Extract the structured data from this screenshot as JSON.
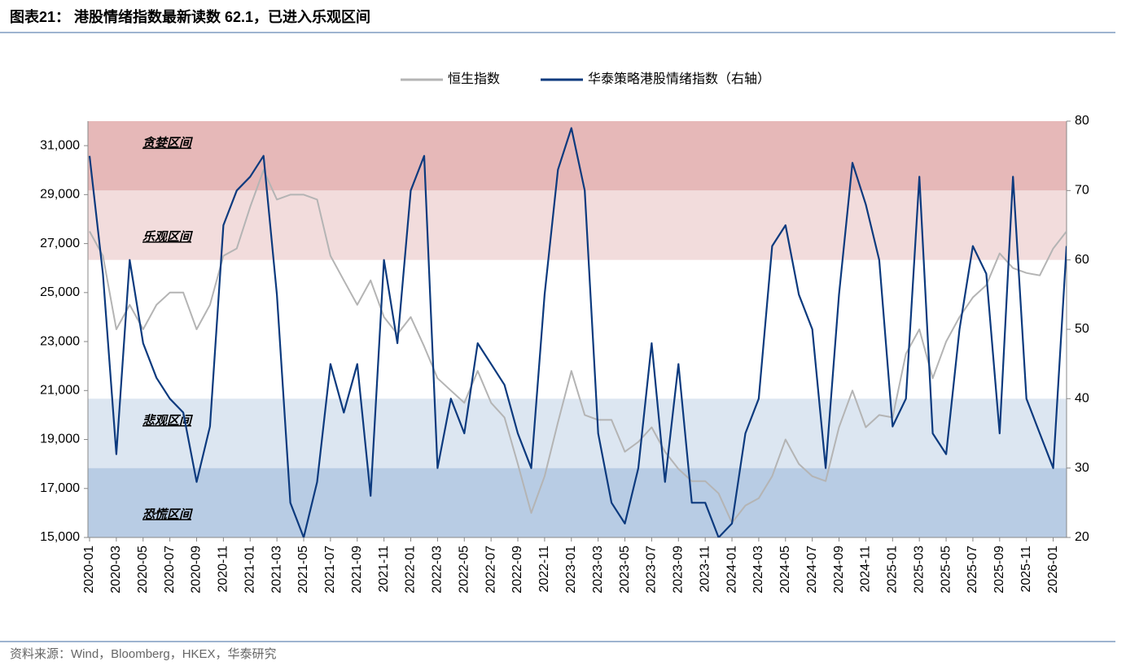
{
  "chart_data": {
    "type": "line",
    "title": "图表21： 港股情绪指数最新读数 62.1，已进入乐观区间",
    "source": "资料来源：Wind，Bloomberg，HKEX，华泰研究",
    "categories": [
      "2020-01",
      null,
      "2020-03",
      null,
      "2020-05",
      null,
      "2020-07",
      null,
      "2020-09",
      null,
      "2020-11",
      null,
      "2021-01",
      null,
      "2021-03",
      null,
      "2021-05",
      null,
      "2021-07",
      null,
      "2021-09",
      null,
      "2021-11",
      null,
      "2022-01",
      null,
      "2022-03",
      null,
      "2022-05",
      null,
      "2022-07",
      null,
      "2022-09",
      null,
      "2022-11",
      null,
      "2023-01",
      null,
      "2023-03",
      null,
      "2023-05",
      null,
      "2023-07",
      null,
      "2023-09",
      null,
      "2023-11",
      null,
      "2024-01",
      null,
      "2024-03",
      null,
      "2024-05",
      null,
      "2024-07",
      null,
      "2024-09",
      null,
      "2024-11",
      null,
      "2025-01",
      null,
      "2025-03",
      null,
      "2025-05",
      null,
      "2025-07",
      null,
      "2025-09",
      null,
      "2025-11",
      null,
      "2026-01",
      null
    ],
    "series": [
      {
        "name": "恒生指数",
        "color": "#b4b4b4",
        "axis": "y",
        "values": [
          27500,
          26500,
          23500,
          24500,
          23500,
          24500,
          25000,
          25000,
          23500,
          24500,
          26500,
          26800,
          28500,
          30000,
          28800,
          29000,
          29000,
          28800,
          26500,
          25500,
          24500,
          25500,
          24000,
          23300,
          24000,
          22800,
          21500,
          21000,
          20500,
          21800,
          20500,
          19900,
          18000,
          16000,
          17500,
          19700,
          21800,
          20000,
          19800,
          19800,
          18500,
          18900,
          19500,
          18500,
          17800,
          17300,
          17300,
          16800,
          15600,
          16300,
          16600,
          17500,
          19000,
          18000,
          17500,
          17300,
          19500,
          21000,
          19500,
          20000,
          19900,
          22500,
          23500,
          21500,
          23000,
          24000,
          24800,
          25300,
          26600,
          26000,
          25800,
          25700,
          26800,
          27500
        ]
      },
      {
        "name": "华泰策略港股情绪指数（右轴）",
        "color": "#0c3a7e",
        "axis": "y2",
        "values": [
          75,
          58,
          32,
          60,
          48,
          43,
          40,
          38,
          28,
          36,
          65,
          70,
          72,
          75,
          55,
          25,
          20,
          28,
          45,
          38,
          45,
          26,
          60,
          48,
          70,
          75,
          30,
          40,
          35,
          48,
          45,
          42,
          35,
          30,
          55,
          73,
          79,
          70,
          35,
          25,
          22,
          30,
          48,
          28,
          45,
          25,
          25,
          20,
          22,
          35,
          40,
          62,
          65,
          55,
          50,
          30,
          55,
          74,
          68,
          60,
          36,
          40,
          72,
          35,
          32,
          50,
          62,
          58,
          35,
          72,
          40,
          35,
          30,
          62
        ]
      }
    ],
    "zones": [
      {
        "name": "贪婪区间",
        "range": [
          70,
          80
        ],
        "color": "#e6b8b8"
      },
      {
        "name": "乐观区间",
        "range": [
          60,
          70
        ],
        "color": "#f2dcdc"
      },
      {
        "name": "悲观区间",
        "range": [
          30,
          40
        ],
        "color": "#dce6f1"
      },
      {
        "name": "恐慌区间",
        "range": [
          20,
          30
        ],
        "color": "#b8cce4"
      }
    ],
    "ylim": [
      15000,
      32000
    ],
    "yticks": [
      {
        "value": 15000,
        "label": "15,000"
      },
      {
        "value": 17000,
        "label": "17,000"
      },
      {
        "value": 19000,
        "label": "19,000"
      },
      {
        "value": 21000,
        "label": "21,000"
      },
      {
        "value": 23000,
        "label": "23,000"
      },
      {
        "value": 25000,
        "label": "25,000"
      },
      {
        "value": 27000,
        "label": "27,000"
      },
      {
        "value": 29000,
        "label": "29,000"
      },
      {
        "value": 31000,
        "label": "31,000"
      }
    ],
    "y2lim": [
      20,
      80
    ],
    "y2ticks": [
      20,
      30,
      40,
      50,
      60,
      70,
      80
    ]
  }
}
